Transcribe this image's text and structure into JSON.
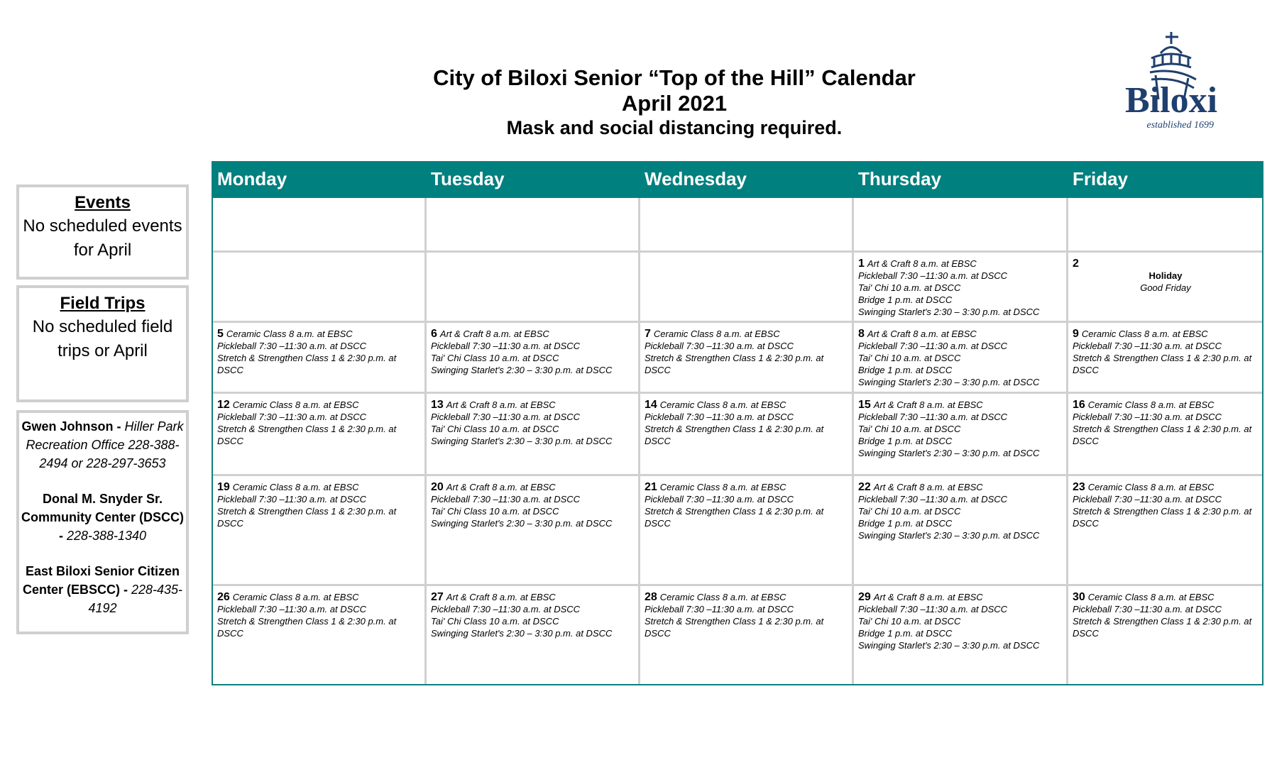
{
  "header": {
    "title": "City of Biloxi Senior “Top of the Hill” Calendar",
    "month": "April 2021",
    "notice": "Mask and social distancing required."
  },
  "logo": {
    "text": "Biloxi",
    "tagline": "established 1699",
    "color": "#1f3f6e"
  },
  "sidebar": {
    "events": {
      "title": "Events",
      "text": "No scheduled events for April"
    },
    "field_trips": {
      "title": "Field Trips",
      "text": "No scheduled field trips or April"
    },
    "contacts": [
      {
        "name": "Gwen Johnson -",
        "detail": "Hiller Park Recreation Office 228-388-2494 or 228-297-3653"
      },
      {
        "name": "Donal M. Snyder Sr. Community Center (DSCC) -",
        "detail": "228-388-1340"
      },
      {
        "name": "East Biloxi Senior Citizen Center (EBSCC) -",
        "detail": "228-435-4192"
      }
    ]
  },
  "colors": {
    "header_bg": "#00807f",
    "grid": "#d0d0d0"
  },
  "calendar": {
    "days": [
      "Monday",
      "Tuesday",
      "Wednesday",
      "Thursday",
      "Friday"
    ],
    "weeks": [
      [
        {
          "day": "",
          "lines": []
        },
        {
          "day": "",
          "lines": []
        },
        {
          "day": "",
          "lines": []
        },
        {
          "day": "",
          "lines": []
        },
        {
          "day": "",
          "lines": []
        }
      ],
      [
        {
          "day": "",
          "lines": []
        },
        {
          "day": "",
          "lines": []
        },
        {
          "day": "",
          "lines": []
        },
        {
          "day": "1",
          "lines": [
            "Art & Craft 8 a.m. at EBSC",
            "Pickleball 7:30 –11:30 a.m. at DSCC",
            "Tai' Chi 10 a.m. at DSCC",
            "Bridge 1 p.m. at DSCC",
            "Swinging Starlet's 2:30 – 3:30 p.m. at DSCC"
          ]
        },
        {
          "day": "2",
          "holiday": "Holiday",
          "holiday_name": "Good Friday",
          "lines": []
        }
      ],
      [
        {
          "day": "5",
          "lines": [
            "Ceramic Class 8 a.m. at EBSC",
            "Pickleball 7:30 –11:30 a.m. at DSCC",
            "Stretch & Strengthen Class 1 & 2:30 p.m. at DSCC"
          ]
        },
        {
          "day": "6",
          "lines": [
            "Art & Craft 8 a.m. at EBSC",
            "Pickleball 7:30 –11:30 a.m. at DSCC",
            "Tai' Chi Class 10 a.m. at DSCC",
            "Swinging Starlet's 2:30 – 3:30 p.m. at DSCC"
          ]
        },
        {
          "day": "7",
          "lines": [
            "Ceramic Class 8 a.m. at EBSC",
            "Pickleball 7:30 –11:30 a.m. at DSCC",
            "Stretch & Strengthen Class 1 & 2:30 p.m. at DSCC"
          ]
        },
        {
          "day": "8",
          "lines": [
            "Art & Craft 8 a.m. at EBSC",
            "Pickleball 7:30 –11:30 a.m. at DSCC",
            "Tai' Chi 10 a.m. at DSCC",
            "Bridge 1 p.m. at DSCC",
            "Swinging Starlet's 2:30 – 3:30 p.m. at DSCC"
          ]
        },
        {
          "day": "9",
          "lines": [
            "Ceramic Class 8 a.m. at EBSC",
            "Pickleball 7:30 –11:30 a.m. at DSCC",
            "Stretch & Strengthen Class 1 & 2:30 p.m. at DSCC"
          ]
        }
      ],
      [
        {
          "day": "12",
          "lines": [
            "Ceramic Class 8 a.m. at EBSC",
            "Pickleball 7:30 –11:30 a.m. at DSCC",
            "Stretch & Strengthen Class 1 & 2:30 p.m. at DSCC"
          ]
        },
        {
          "day": "13",
          "lines": [
            "Art & Craft 8 a.m. at EBSC",
            "Pickleball 7:30 –11:30 a.m. at DSCC",
            "Tai' Chi Class 10 a.m. at DSCC",
            "Swinging Starlet's 2:30 – 3:30 p.m. at DSCC"
          ]
        },
        {
          "day": "14",
          "lines": [
            "Ceramic Class 8 a.m. at EBSC",
            "Pickleball 7:30 –11:30 a.m. at DSCC",
            "Stretch & Strengthen Class 1 & 2:30 p.m. at DSCC"
          ]
        },
        {
          "day": "15",
          "lines": [
            "Art & Craft 8 a.m. at EBSC",
            "Pickleball 7:30 –11:30 a.m. at DSCC",
            "Tai' Chi 10 a.m. at DSCC",
            "Bridge 1 p.m. at DSCC",
            "Swinging Starlet's 2:30 – 3:30 p.m. at DSCC"
          ]
        },
        {
          "day": "16",
          "lines": [
            "Ceramic Class 8 a.m. at EBSC",
            "Pickleball 7:30 –11:30 a.m. at DSCC",
            "Stretch & Strengthen Class 1 & 2:30 p.m. at DSCC"
          ]
        }
      ],
      [
        {
          "day": "19",
          "lines": [
            "Ceramic Class 8 a.m. at EBSC",
            "Pickleball 7:30 –11:30 a.m. at DSCC",
            "Stretch & Strengthen Class 1 & 2:30 p.m. at DSCC"
          ]
        },
        {
          "day": "20",
          "lines": [
            "Art & Craft 8 a.m. at EBSC",
            "Pickleball 7:30 –11:30 a.m. at DSCC",
            "Tai' Chi Class 10 a.m. at DSCC",
            "Swinging Starlet's 2:30 – 3:30 p.m. at DSCC"
          ]
        },
        {
          "day": "21",
          "lines": [
            "Ceramic Class 8 a.m. at EBSC",
            "Pickleball 7:30 –11:30 a.m. at DSCC",
            "Stretch & Strengthen Class 1 & 2:30 p.m. at DSCC"
          ]
        },
        {
          "day": "22",
          "lines": [
            "Art & Craft 8 a.m. at EBSC",
            "Pickleball 7:30 –11:30 a.m. at DSCC",
            "Tai' Chi 10 a.m. at DSCC",
            "Bridge 1 p.m. at DSCC",
            "Swinging Starlet's 2:30 – 3:30 p.m. at DSCC"
          ]
        },
        {
          "day": "23",
          "lines": [
            "Ceramic Class 8 a.m. at EBSC",
            "Pickleball 7:30 –11:30 a.m. at DSCC",
            "Stretch & Strengthen Class 1 & 2:30 p.m. at DSCC"
          ]
        }
      ],
      [
        {
          "day": "26",
          "lines": [
            "Ceramic Class 8 a.m. at EBSC",
            "Pickleball 7:30 –11:30 a.m. at DSCC",
            "Stretch & Strengthen Class 1 & 2:30 p.m. at DSCC"
          ]
        },
        {
          "day": "27",
          "lines": [
            "Art & Craft 8 a.m. at EBSC",
            "Pickleball 7:30 –11:30 a.m. at DSCC",
            "Tai' Chi Class 10 a.m. at DSCC",
            "Swinging Starlet's 2:30 – 3:30 p.m. at DSCC"
          ]
        },
        {
          "day": "28",
          "lines": [
            "Ceramic Class 8 a.m. at EBSC",
            "Pickleball 7:30 –11:30 a.m. at DSCC",
            "Stretch & Strengthen Class 1 & 2:30 p.m. at DSCC"
          ]
        },
        {
          "day": "29",
          "lines": [
            "Art & Craft 8 a.m. at EBSC",
            "Pickleball 7:30 –11:30 a.m. at DSCC",
            "Tai' Chi 10 a.m. at DSCC",
            "Bridge 1 p.m. at DSCC",
            "Swinging Starlet's 2:30 – 3:30 p.m. at DSCC"
          ]
        },
        {
          "day": "30",
          "lines": [
            "Ceramic Class 8 a.m. at EBSC",
            "Pickleball 7:30 –11:30 a.m. at DSCC",
            "Stretch & Strengthen Class 1 & 2:30 p.m. at DSCC"
          ]
        }
      ]
    ]
  }
}
